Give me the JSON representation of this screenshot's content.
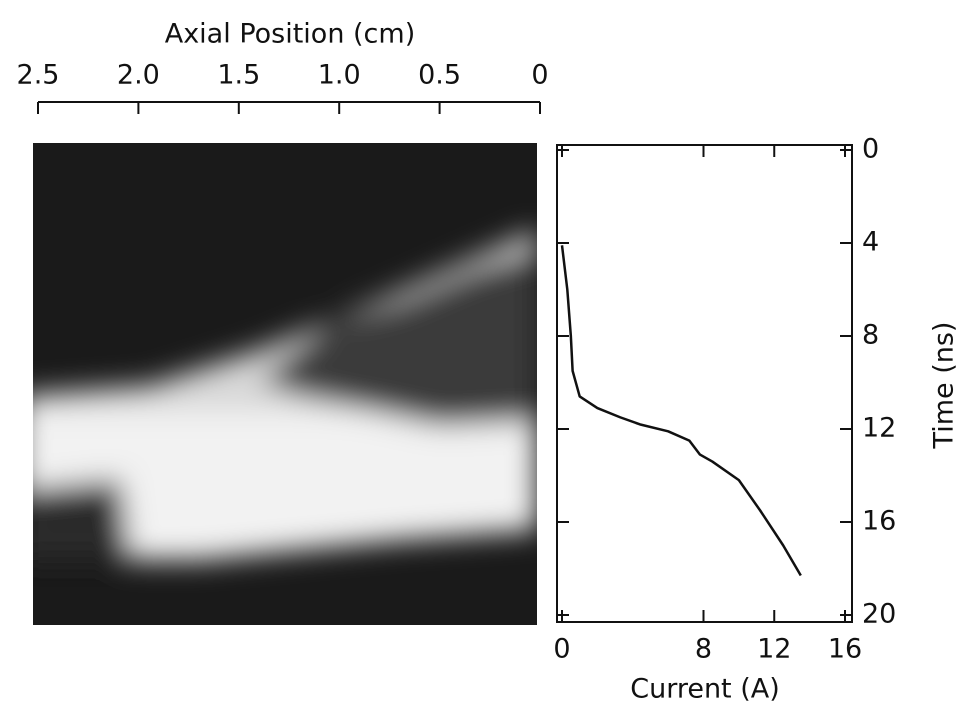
{
  "chart_data": [
    {
      "type": "image",
      "xlabel": "Axial Position (cm)",
      "xlim": [
        2.5,
        0
      ],
      "xticks": [
        {
          "value": 2.5,
          "label": "2.5"
        },
        {
          "value": 2,
          "label": "2.0"
        },
        {
          "value": 1.5,
          "label": "1.5"
        },
        {
          "value": 1,
          "label": "1.0"
        },
        0.5,
        0
      ]
    },
    {
      "type": "line",
      "xlabel": "Current (A)",
      "ylabel": "Time (ns)",
      "xlim": [
        0,
        16
      ],
      "xticks": [
        0,
        8,
        12,
        16
      ],
      "ylim": [
        0,
        20
      ],
      "yticks": [
        0,
        4,
        8,
        12,
        16,
        20
      ],
      "y_inverted": true,
      "color": "#111111",
      "series": [
        {
          "x": [
            0,
            0.3,
            0.5,
            0.6,
            1,
            2,
            3.3,
            4.4,
            6,
            7.2,
            7.8,
            8.5,
            10,
            11.2,
            12.5,
            13.5
          ],
          "values": [
            4.1,
            6,
            8,
            9.5,
            10.6,
            11.1,
            11.5,
            11.8,
            12.1,
            12.5,
            13.1,
            13.4,
            14.2,
            15.5,
            17,
            18.3
          ]
        }
      ]
    }
  ]
}
